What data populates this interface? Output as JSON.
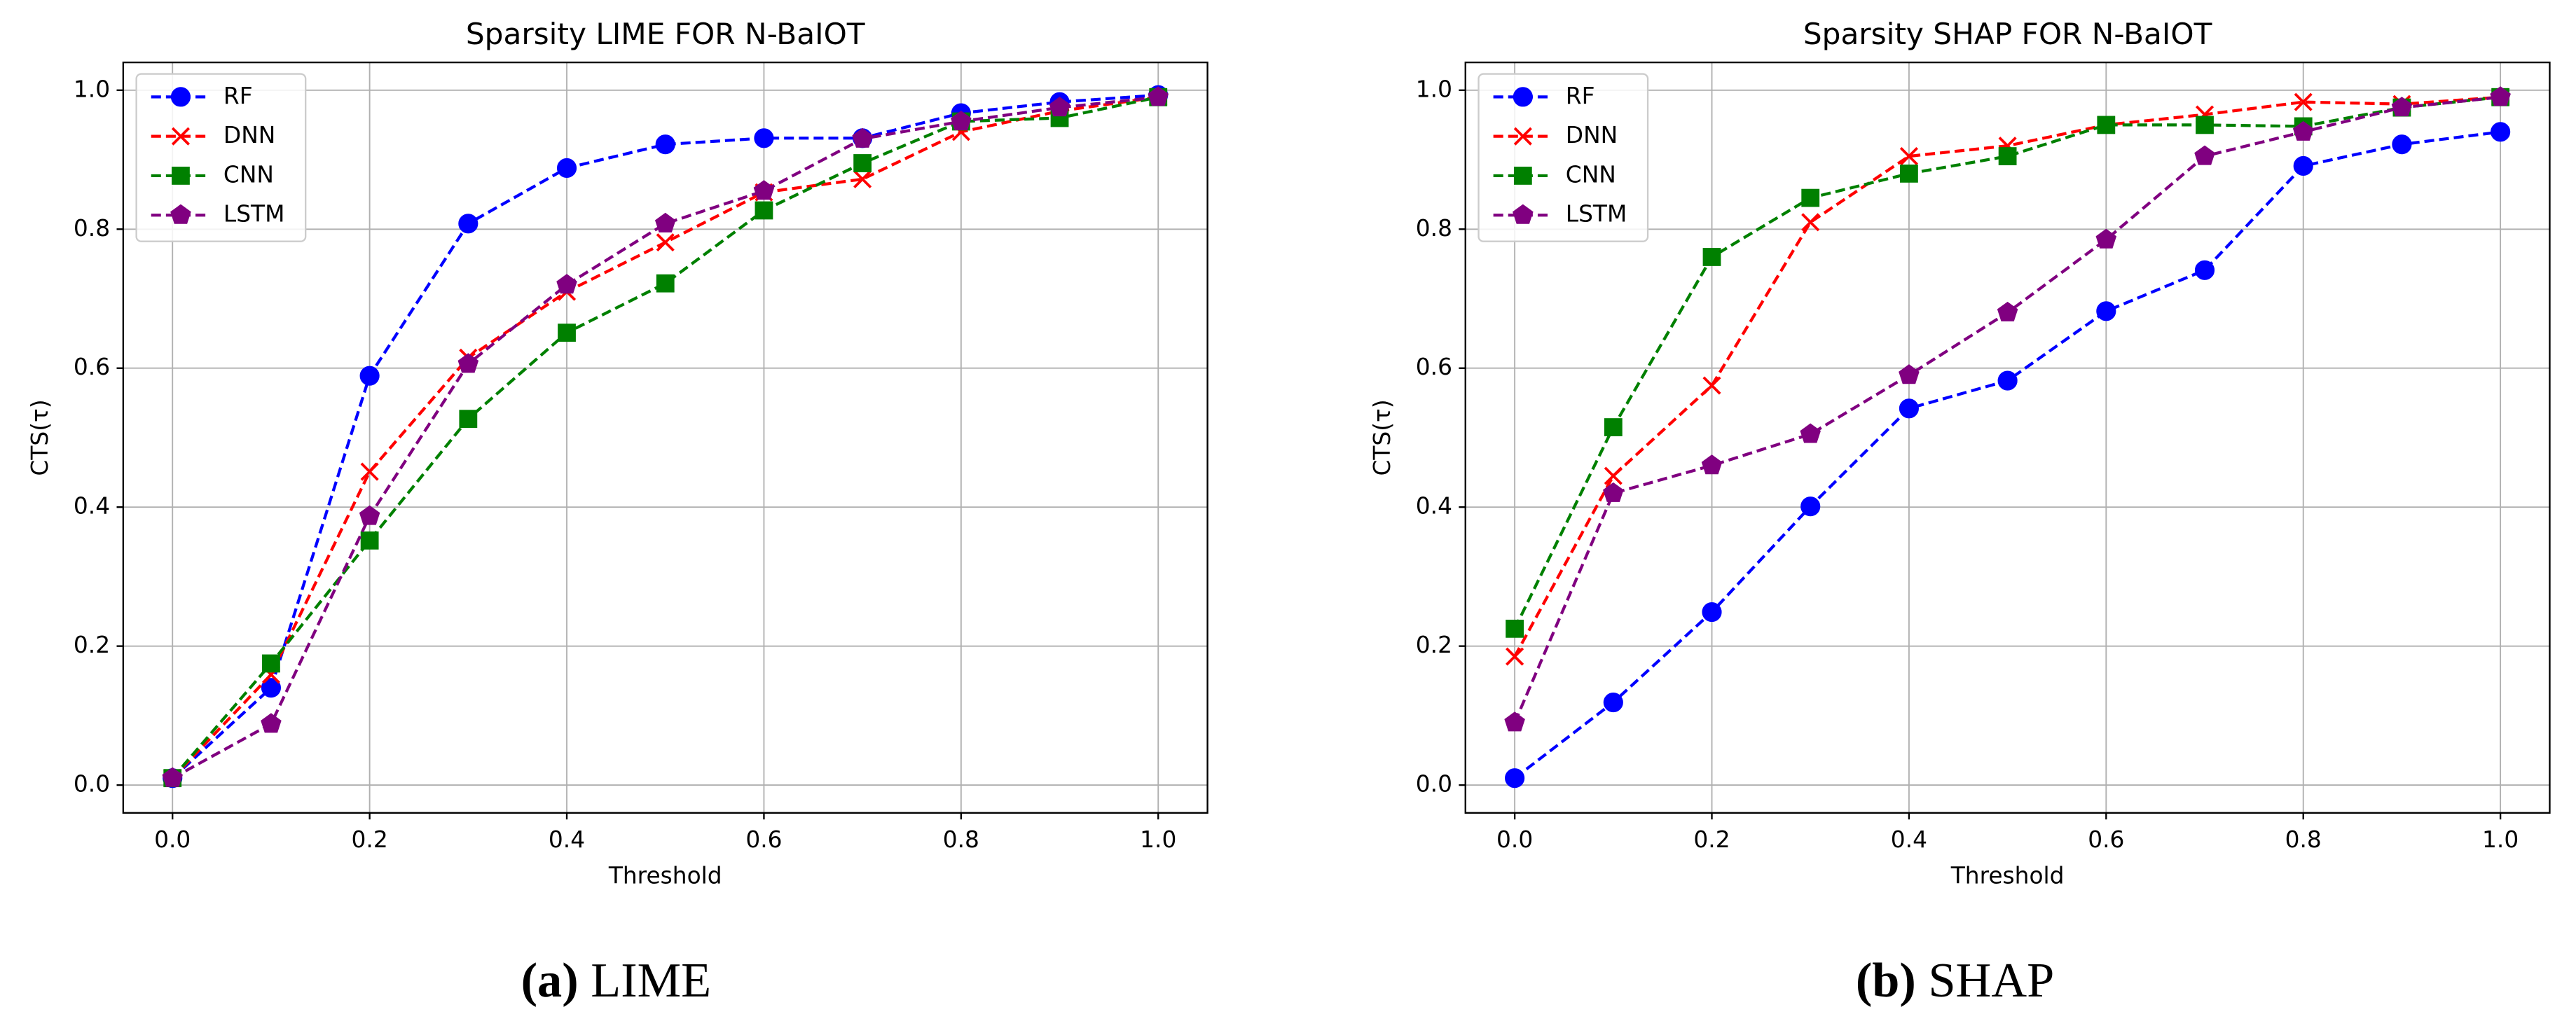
{
  "chart_data": [
    {
      "type": "line",
      "title": "Sparsity LIME FOR N-BaIOT",
      "xlabel": "Threshold",
      "ylabel": "CTS(τ)",
      "caption_label": "(a)",
      "caption": "LIME",
      "x": [
        0,
        0.1,
        0.2,
        0.3,
        0.4,
        0.5,
        0.6,
        0.7,
        0.8,
        0.9,
        1.0
      ],
      "xlim": [
        -0.05,
        1.05
      ],
      "ylim": [
        -0.04,
        1.04
      ],
      "xticks": [
        {
          "value": 0,
          "label": "0.0"
        },
        0.2,
        0.4,
        0.6,
        0.8,
        {
          "value": 1,
          "label": "1.0"
        }
      ],
      "yticks": [
        {
          "value": 0,
          "label": "0.0"
        },
        0.2,
        0.4,
        0.6,
        0.8,
        {
          "value": 1,
          "label": "1.0"
        }
      ],
      "grid": true,
      "legend": "upper left",
      "series": [
        {
          "name": "RF",
          "color": "#0000ff",
          "marker": "circle",
          "values": [
            0.01,
            0.14,
            0.589,
            0.808,
            0.888,
            0.922,
            0.931,
            0.931,
            0.967,
            0.983,
            0.993
          ]
        },
        {
          "name": "DNN",
          "color": "#ff0000",
          "marker": "x",
          "values": [
            0.01,
            0.159,
            0.451,
            0.615,
            0.71,
            0.781,
            0.853,
            0.872,
            0.94,
            0.97,
            0.99
          ]
        },
        {
          "name": "CNN",
          "color": "#008000",
          "marker": "square",
          "values": [
            0.01,
            0.175,
            0.352,
            0.527,
            0.651,
            0.722,
            0.827,
            0.895,
            0.955,
            0.96,
            0.99
          ]
        },
        {
          "name": "LSTM",
          "color": "#800080",
          "marker": "pentagon",
          "values": [
            0.01,
            0.088,
            0.387,
            0.606,
            0.72,
            0.808,
            0.855,
            0.93,
            0.955,
            0.975,
            0.99
          ]
        }
      ]
    },
    {
      "type": "line",
      "title": "Sparsity SHAP FOR N-BaIOT",
      "xlabel": "Threshold",
      "ylabel": "CTS(τ)",
      "caption_label": "(b)",
      "caption": "SHAP",
      "x": [
        0,
        0.1,
        0.2,
        0.3,
        0.4,
        0.5,
        0.6,
        0.7,
        0.8,
        0.9,
        1.0
      ],
      "xlim": [
        -0.05,
        1.05
      ],
      "ylim": [
        -0.04,
        1.04
      ],
      "xticks": [
        {
          "value": 0,
          "label": "0.0"
        },
        0.2,
        0.4,
        0.6,
        0.8,
        {
          "value": 1,
          "label": "1.0"
        }
      ],
      "yticks": [
        {
          "value": 0,
          "label": "0.0"
        },
        0.2,
        0.4,
        0.6,
        0.8,
        {
          "value": 1,
          "label": "1.0"
        }
      ],
      "grid": true,
      "legend": "upper left",
      "series": [
        {
          "name": "RF",
          "color": "#0000ff",
          "marker": "circle",
          "values": [
            0.01,
            0.119,
            0.249,
            0.401,
            0.542,
            0.582,
            0.682,
            0.741,
            0.891,
            0.922,
            0.94
          ]
        },
        {
          "name": "DNN",
          "color": "#ff0000",
          "marker": "x",
          "values": [
            0.185,
            0.445,
            0.575,
            0.81,
            0.905,
            0.92,
            0.95,
            0.965,
            0.983,
            0.98,
            0.99
          ]
        },
        {
          "name": "CNN",
          "color": "#008000",
          "marker": "square",
          "values": [
            0.225,
            0.515,
            0.76,
            0.845,
            0.88,
            0.905,
            0.95,
            0.95,
            0.948,
            0.975,
            0.99
          ]
        },
        {
          "name": "LSTM",
          "color": "#800080",
          "marker": "pentagon",
          "values": [
            0.09,
            0.42,
            0.46,
            0.505,
            0.59,
            0.68,
            0.785,
            0.905,
            0.94,
            0.975,
            0.99
          ]
        }
      ]
    }
  ]
}
